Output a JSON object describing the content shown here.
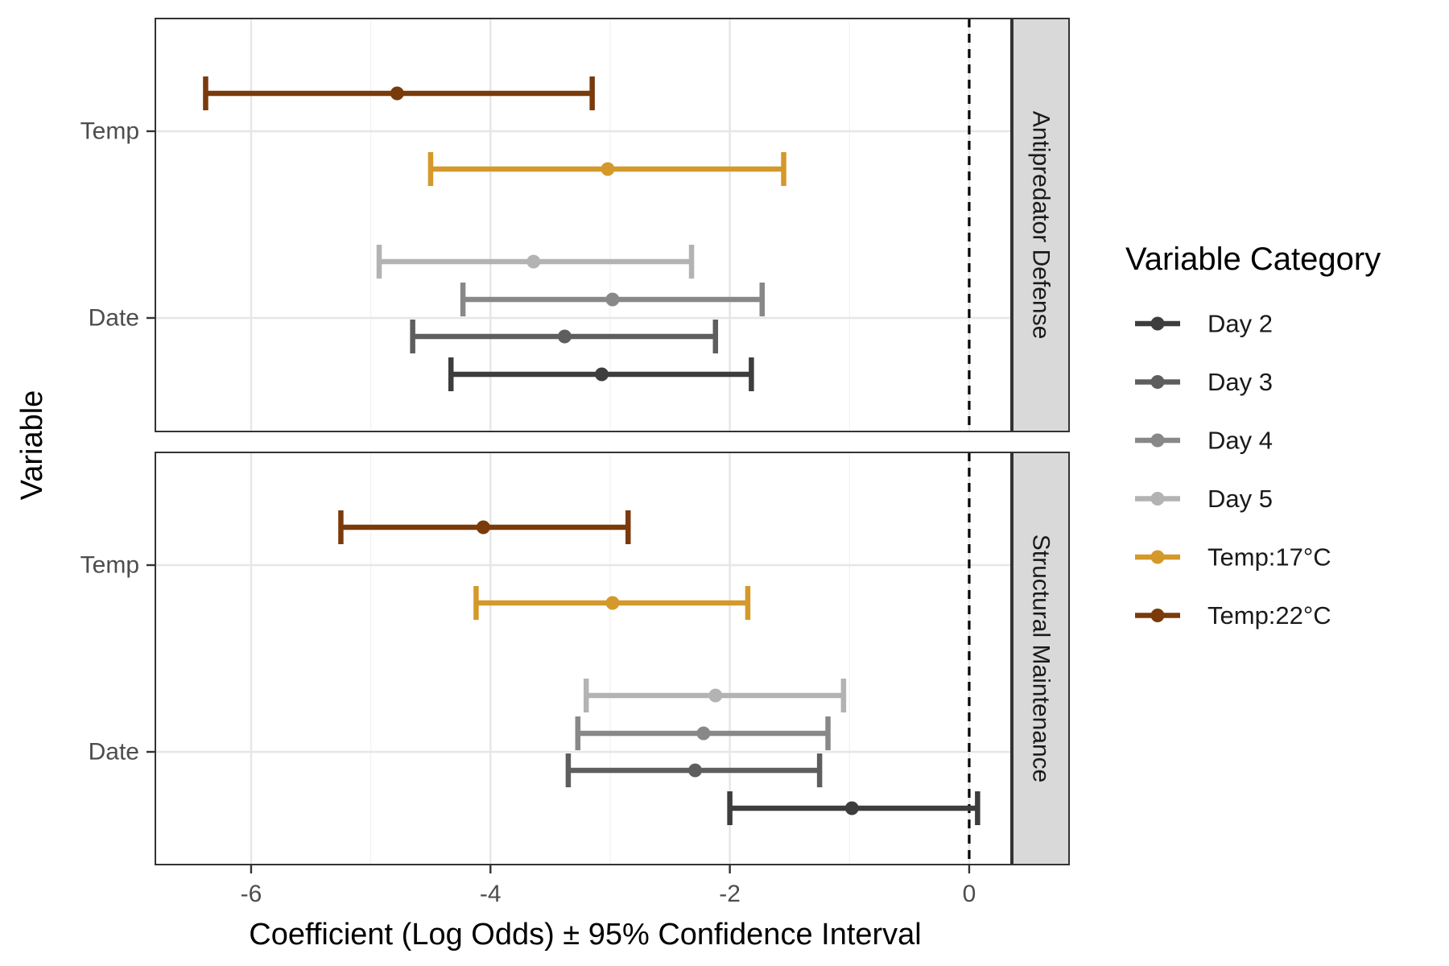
{
  "chart_data": {
    "type": "forest",
    "xlabel": "Coefficient (Log Odds) ± 95% Confidence Interval",
    "ylabel": "Variable",
    "xlim": [
      -6.8,
      0.35
    ],
    "x_ticks": [
      -6,
      -4,
      -2,
      0
    ],
    "x_tick_labels": [
      "-6",
      "-4",
      "-2",
      "0"
    ],
    "y_categories": [
      "Temp",
      "Date"
    ],
    "reference_line": 0,
    "grid": true,
    "legend": {
      "title": "Variable Category",
      "position": "right",
      "entries": [
        {
          "label": "Day 2",
          "color": "#3d3d3d"
        },
        {
          "label": "Day 3",
          "color": "#5e5e5e"
        },
        {
          "label": "Day 4",
          "color": "#888888"
        },
        {
          "label": "Day 5",
          "color": "#b3b3b3"
        },
        {
          "label": "Temp:17°C",
          "color": "#d4992a"
        },
        {
          "label": "Temp:22°C",
          "color": "#7a3a0a"
        }
      ]
    },
    "panels": [
      {
        "label": "Antipredator Defense",
        "points": [
          {
            "variable": "Temp",
            "category": "Temp:22°C",
            "estimate": -4.78,
            "low": -6.38,
            "high": -3.15
          },
          {
            "variable": "Temp",
            "category": "Temp:17°C",
            "estimate": -3.02,
            "low": -4.5,
            "high": -1.55
          },
          {
            "variable": "Date",
            "category": "Day 5",
            "estimate": -3.64,
            "low": -4.93,
            "high": -2.32
          },
          {
            "variable": "Date",
            "category": "Day 4",
            "estimate": -2.98,
            "low": -4.23,
            "high": -1.73
          },
          {
            "variable": "Date",
            "category": "Day 3",
            "estimate": -3.38,
            "low": -4.65,
            "high": -2.12
          },
          {
            "variable": "Date",
            "category": "Day 2",
            "estimate": -3.07,
            "low": -4.33,
            "high": -1.82
          }
        ]
      },
      {
        "label": "Structural Maintenance",
        "points": [
          {
            "variable": "Temp",
            "category": "Temp:22°C",
            "estimate": -4.06,
            "low": -5.25,
            "high": -2.85
          },
          {
            "variable": "Temp",
            "category": "Temp:17°C",
            "estimate": -2.98,
            "low": -4.12,
            "high": -1.85
          },
          {
            "variable": "Date",
            "category": "Day 5",
            "estimate": -2.12,
            "low": -3.2,
            "high": -1.05
          },
          {
            "variable": "Date",
            "category": "Day 4",
            "estimate": -2.22,
            "low": -3.27,
            "high": -1.18
          },
          {
            "variable": "Date",
            "category": "Day 3",
            "estimate": -2.29,
            "low": -3.35,
            "high": -1.25
          },
          {
            "variable": "Date",
            "category": "Day 2",
            "estimate": -0.98,
            "low": -2.0,
            "high": 0.07
          }
        ]
      }
    ]
  }
}
